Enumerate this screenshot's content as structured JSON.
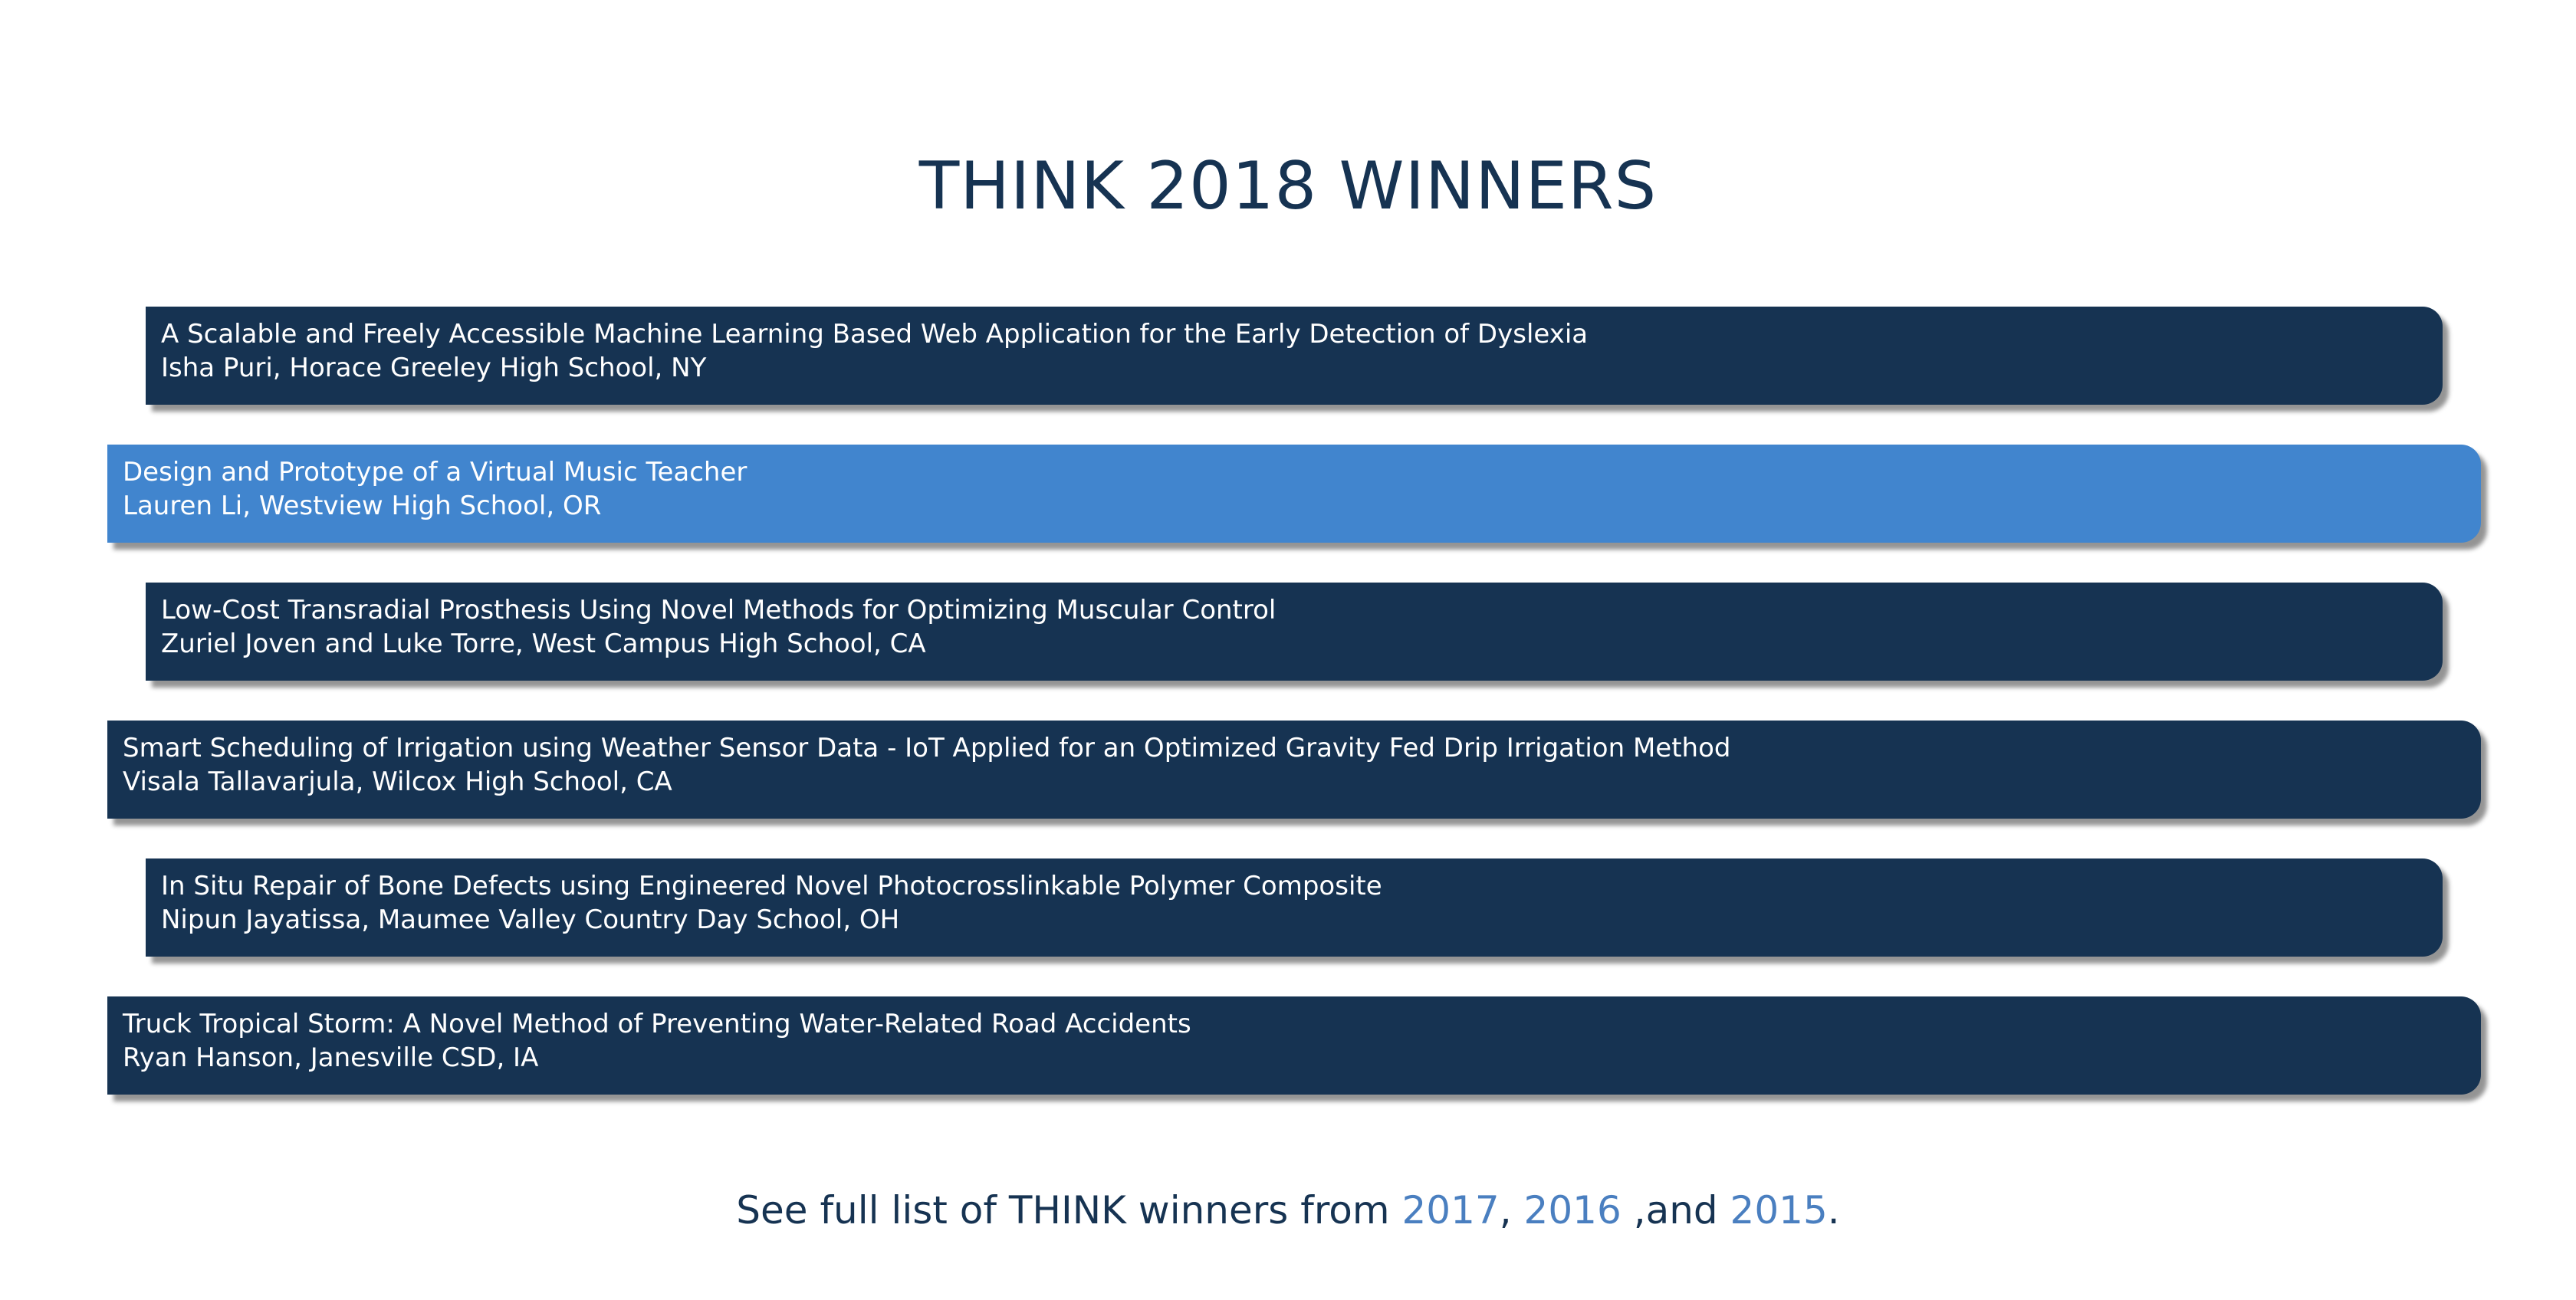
{
  "page": {
    "title": "THINK 2018 WINNERS"
  },
  "winners": [
    {
      "title": "A Scalable and Freely Accessible Machine Learning Based Web Application for the Early Detection of Dyslexia",
      "author": "Isha Puri, Horace Greeley High School, NY"
    },
    {
      "title": "Design and Prototype of a Virtual Music Teacher",
      "author": "Lauren Li, Westview High School, OR"
    },
    {
      "title": "Low-Cost Transradial Prosthesis Using Novel Methods for Optimizing Muscular Control",
      "author": "Zuriel Joven and Luke Torre, West Campus High School, CA"
    },
    {
      "title": "Smart Scheduling of Irrigation using Weather Sensor Data - IoT Applied for an Optimized Gravity Fed Drip Irrigation Method",
      "author": "Visala Tallavarjula, Wilcox High School, CA"
    },
    {
      "title": "In Situ Repair of Bone Defects using Engineered Novel Photocrosslinkable Polymer Composite",
      "author": "Nipun Jayatissa, Maumee Valley Country Day School, OH"
    },
    {
      "title": "Truck Tropical Storm: A Novel Method of Preventing Water-Related Road Accidents",
      "author": "Ryan Hanson, Janesville CSD, IA"
    }
  ],
  "footer": {
    "prefix": "See full list of THINK winners from ",
    "link_2017": "2017",
    "sep1": ", ",
    "link_2016": "2016",
    "sep2": " ,and ",
    "link_2015": "2015",
    "suffix": "."
  },
  "colors": {
    "card_default": "#163352",
    "card_active": "#4185ce",
    "heading": "#163352",
    "link": "#4a7fc0"
  }
}
